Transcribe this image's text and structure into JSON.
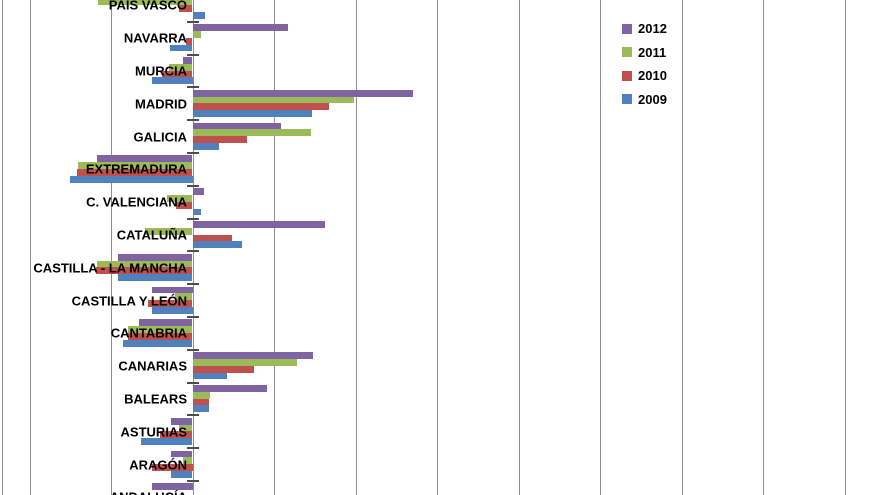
{
  "chart_data": {
    "type": "bar",
    "orientation": "horizontal",
    "title": "",
    "xlabel": "",
    "ylabel": "",
    "categories": [
      "PAÍS VASCO",
      "NAVARRA",
      "MURCIA",
      "MADRID",
      "GALICIA",
      "EXTREMADURA",
      "C. VALENCIANA",
      "CATALUÑA",
      "CASTILLA - LA MANCHA",
      "CASTILLA Y LEÓN",
      "CANTABRIA",
      "CANARIAS",
      "BALEARS",
      "ASTURIAS",
      "ARAGÓN",
      "ANDALUCÍA"
    ],
    "series": [
      {
        "name": "2012",
        "color": "#8064A2",
        "values": [
          null,
          1.17,
          -0.12,
          2.71,
          1.09,
          -1.17,
          0.14,
          1.62,
          -0.91,
          -0.5,
          -0.66,
          1.48,
          0.91,
          -0.26,
          -0.26,
          -0.5
        ]
      },
      {
        "name": "2011",
        "color": "#9BBB59",
        "values": [
          -1.16,
          0.11,
          -0.29,
          1.98,
          1.45,
          -1.41,
          -0.31,
          -0.58,
          -1.17,
          -0.22,
          -0.79,
          1.28,
          0.21,
          -0.16,
          -0.12,
          null
        ]
      },
      {
        "name": "2010",
        "color": "#C0504D",
        "values": [
          -0.16,
          -0.08,
          -0.37,
          1.67,
          0.67,
          -1.42,
          -0.2,
          0.49,
          -1.18,
          -0.55,
          -0.79,
          0.76,
          0.2,
          -0.4,
          -0.5,
          null
        ]
      },
      {
        "name": "2009",
        "color": "#4F81BD",
        "values": [
          0.15,
          -0.27,
          -0.5,
          1.47,
          0.32,
          -1.5,
          0.11,
          0.61,
          -0.91,
          -0.5,
          -0.85,
          0.42,
          0.2,
          -0.63,
          -0.26,
          null
        ]
      }
    ],
    "x_axis": {
      "min": -2,
      "max": 8,
      "gridline_step": 1,
      "tick_labels_visible": false
    },
    "y_axis": {
      "tick_marks_visible": true
    },
    "grid": true,
    "legend": {
      "position": "right-center"
    }
  },
  "colors": {
    "background": "#FFFFFF",
    "gridline": "#8E8E8E",
    "axis": "#8E8E8E",
    "chart_border": "#8E8E8E",
    "tick": "#4D4D4D",
    "label_text": "#000000"
  }
}
